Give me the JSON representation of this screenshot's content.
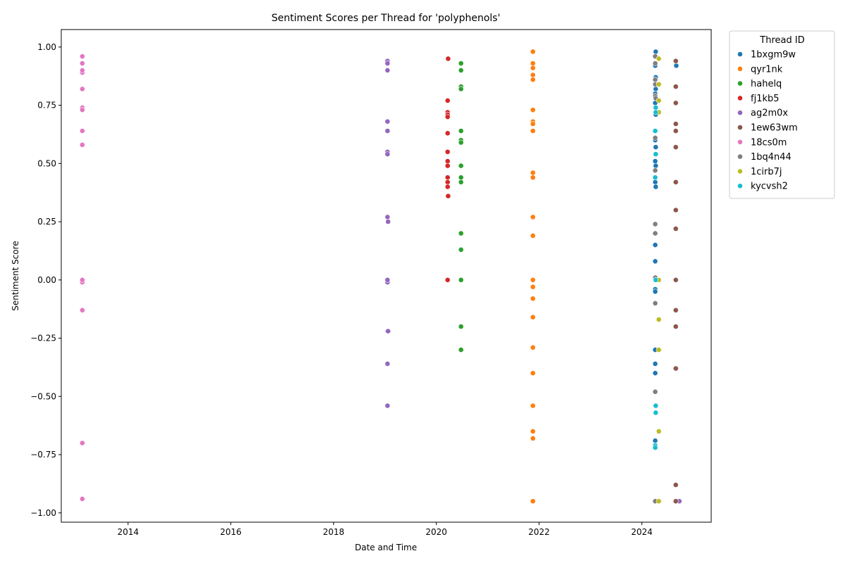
{
  "chart_data": {
    "type": "scatter",
    "title": "Sentiment Scores per Thread for 'polyphenols'",
    "xlabel": "Date and Time",
    "ylabel": "Sentiment Score",
    "xlim": [
      2012.7,
      2025.35
    ],
    "ylim": [
      -1.04,
      1.075
    ],
    "x_ticks": [
      2014,
      2016,
      2018,
      2020,
      2022,
      2024
    ],
    "y_ticks": [
      1.0,
      0.75,
      0.5,
      0.25,
      0.0,
      -0.25,
      -0.5,
      -0.75,
      -1.0
    ],
    "y_tick_labels": [
      "1.00",
      "0.75",
      "0.50",
      "0.25",
      "0.00",
      "−0.25",
      "−0.50",
      "−0.75",
      "−1.00"
    ],
    "grid": false,
    "legend": {
      "title": "Thread ID",
      "position": "outside-right"
    },
    "series": [
      {
        "name": "1bxgm9w",
        "color": "#1f77b4",
        "points": [
          [
            2024.27,
            0.98
          ],
          [
            2024.26,
            0.93
          ],
          [
            2024.26,
            0.92
          ],
          [
            2024.27,
            0.87
          ],
          [
            2024.26,
            0.86
          ],
          [
            2024.27,
            0.82
          ],
          [
            2024.26,
            0.8
          ],
          [
            2024.26,
            0.76
          ],
          [
            2024.27,
            0.71
          ],
          [
            2024.26,
            0.6
          ],
          [
            2024.27,
            0.57
          ],
          [
            2024.26,
            0.51
          ],
          [
            2024.27,
            0.49
          ],
          [
            2024.26,
            0.42
          ],
          [
            2024.27,
            0.4
          ],
          [
            2024.26,
            0.15
          ],
          [
            2024.26,
            0.08
          ],
          [
            2024.26,
            -0.04
          ],
          [
            2024.26,
            -0.05
          ],
          [
            2024.26,
            -0.3
          ],
          [
            2024.26,
            -0.36
          ],
          [
            2024.26,
            -0.4
          ],
          [
            2024.26,
            -0.69
          ],
          [
            2024.26,
            -0.72
          ],
          [
            2024.67,
            0.92
          ]
        ]
      },
      {
        "name": "qyr1nk",
        "color": "#ff7f0e",
        "points": [
          [
            2021.88,
            0.98
          ],
          [
            2021.88,
            0.93
          ],
          [
            2021.88,
            0.91
          ],
          [
            2021.88,
            0.88
          ],
          [
            2021.88,
            0.86
          ],
          [
            2021.88,
            0.73
          ],
          [
            2021.88,
            0.68
          ],
          [
            2021.88,
            0.67
          ],
          [
            2021.88,
            0.64
          ],
          [
            2021.88,
            0.46
          ],
          [
            2021.88,
            0.44
          ],
          [
            2021.88,
            0.27
          ],
          [
            2021.88,
            0.19
          ],
          [
            2021.88,
            0.0
          ],
          [
            2021.88,
            -0.03
          ],
          [
            2021.88,
            -0.08
          ],
          [
            2021.88,
            -0.16
          ],
          [
            2021.88,
            -0.29
          ],
          [
            2021.88,
            -0.4
          ],
          [
            2021.88,
            -0.54
          ],
          [
            2021.88,
            -0.65
          ],
          [
            2021.88,
            -0.68
          ],
          [
            2021.88,
            -0.95
          ]
        ]
      },
      {
        "name": "hahelq",
        "color": "#2ca02c",
        "points": [
          [
            2020.48,
            0.93
          ],
          [
            2020.48,
            0.9
          ],
          [
            2020.48,
            0.83
          ],
          [
            2020.48,
            0.82
          ],
          [
            2020.48,
            0.64
          ],
          [
            2020.48,
            0.6
          ],
          [
            2020.48,
            0.59
          ],
          [
            2020.48,
            0.49
          ],
          [
            2020.48,
            0.44
          ],
          [
            2020.48,
            0.42
          ],
          [
            2020.48,
            0.2
          ],
          [
            2020.48,
            0.13
          ],
          [
            2020.48,
            0.0
          ],
          [
            2020.48,
            -0.2
          ],
          [
            2020.48,
            -0.3
          ]
        ]
      },
      {
        "name": "fj1kb5",
        "color": "#d62728",
        "points": [
          [
            2020.23,
            0.95
          ],
          [
            2020.22,
            0.77
          ],
          [
            2020.22,
            0.72
          ],
          [
            2020.22,
            0.71
          ],
          [
            2020.22,
            0.7
          ],
          [
            2020.22,
            0.63
          ],
          [
            2020.22,
            0.55
          ],
          [
            2020.22,
            0.51
          ],
          [
            2020.22,
            0.49
          ],
          [
            2020.22,
            0.44
          ],
          [
            2020.22,
            0.42
          ],
          [
            2020.22,
            0.4
          ],
          [
            2020.23,
            0.36
          ],
          [
            2020.22,
            0.0
          ]
        ]
      },
      {
        "name": "ag2m0x",
        "color": "#9467bd",
        "points": [
          [
            2019.05,
            0.94
          ],
          [
            2019.05,
            0.93
          ],
          [
            2019.05,
            0.9
          ],
          [
            2019.05,
            0.68
          ],
          [
            2019.05,
            0.64
          ],
          [
            2019.05,
            0.55
          ],
          [
            2019.05,
            0.54
          ],
          [
            2019.05,
            0.27
          ],
          [
            2019.06,
            0.25
          ],
          [
            2019.05,
            -0.01
          ],
          [
            2019.05,
            0.0
          ],
          [
            2019.05,
            -0.22
          ],
          [
            2019.06,
            -0.22
          ],
          [
            2019.05,
            -0.36
          ],
          [
            2019.05,
            -0.54
          ],
          [
            2024.73,
            -0.95
          ]
        ]
      },
      {
        "name": "1ew63wm",
        "color": "#8c564b",
        "points": [
          [
            2024.66,
            0.94
          ],
          [
            2024.66,
            0.83
          ],
          [
            2024.66,
            0.76
          ],
          [
            2024.66,
            0.67
          ],
          [
            2024.66,
            0.64
          ],
          [
            2024.66,
            0.57
          ],
          [
            2024.66,
            0.42
          ],
          [
            2024.66,
            0.3
          ],
          [
            2024.66,
            0.22
          ],
          [
            2024.66,
            0.0
          ],
          [
            2024.66,
            -0.13
          ],
          [
            2024.66,
            -0.2
          ],
          [
            2024.66,
            -0.38
          ],
          [
            2024.66,
            -0.88
          ],
          [
            2024.66,
            -0.95
          ]
        ]
      },
      {
        "name": "18cs0m",
        "color": "#e377c2",
        "points": [
          [
            2013.11,
            0.96
          ],
          [
            2013.11,
            0.93
          ],
          [
            2013.11,
            0.89
          ],
          [
            2013.11,
            0.9
          ],
          [
            2013.11,
            0.82
          ],
          [
            2013.11,
            0.74
          ],
          [
            2013.11,
            0.73
          ],
          [
            2013.11,
            0.64
          ],
          [
            2013.11,
            0.58
          ],
          [
            2013.11,
            -0.01
          ],
          [
            2013.11,
            0.0
          ],
          [
            2013.11,
            -0.13
          ],
          [
            2013.11,
            -0.7
          ],
          [
            2013.11,
            -0.94
          ]
        ]
      },
      {
        "name": "1bq4n44",
        "color": "#7f7f7f",
        "points": [
          [
            2024.26,
            0.96
          ],
          [
            2024.26,
            0.93
          ],
          [
            2024.26,
            0.86
          ],
          [
            2024.26,
            0.84
          ],
          [
            2024.26,
            0.79
          ],
          [
            2024.27,
            0.78
          ],
          [
            2024.26,
            0.61
          ],
          [
            2024.26,
            0.47
          ],
          [
            2024.26,
            0.24
          ],
          [
            2024.26,
            0.2
          ],
          [
            2024.26,
            0.01
          ],
          [
            2024.26,
            -0.1
          ],
          [
            2024.26,
            -0.48
          ],
          [
            2024.26,
            -0.95
          ]
        ]
      },
      {
        "name": "1cirb7j",
        "color": "#bcbd22",
        "points": [
          [
            2024.33,
            0.95
          ],
          [
            2024.33,
            0.84
          ],
          [
            2024.33,
            0.77
          ],
          [
            2024.33,
            0.72
          ],
          [
            2024.33,
            0.0
          ],
          [
            2024.33,
            -0.17
          ],
          [
            2024.33,
            -0.3
          ],
          [
            2024.33,
            -0.65
          ],
          [
            2024.33,
            -0.95
          ]
        ]
      },
      {
        "name": "kycvsh2",
        "color": "#17becf",
        "points": [
          [
            2024.27,
            0.74
          ],
          [
            2024.27,
            0.72
          ],
          [
            2024.26,
            0.64
          ],
          [
            2024.27,
            0.54
          ],
          [
            2024.26,
            0.44
          ],
          [
            2024.27,
            0.0
          ],
          [
            2024.27,
            -0.54
          ],
          [
            2024.27,
            -0.57
          ],
          [
            2024.26,
            -0.71
          ],
          [
            2024.26,
            -0.72
          ]
        ]
      }
    ]
  }
}
